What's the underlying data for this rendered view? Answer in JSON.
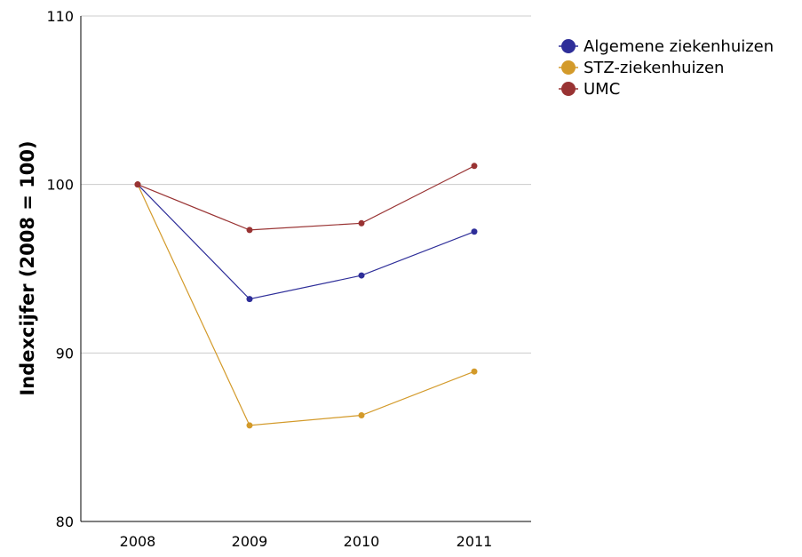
{
  "chart_data": {
    "type": "line",
    "title": "",
    "xlabel": "",
    "ylabel": "Indexcijfer (2008 = 100)",
    "categories": [
      "2008",
      "2009",
      "2010",
      "2011"
    ],
    "ylim": [
      80,
      110
    ],
    "yticks": [
      "80",
      "90",
      "100",
      "110"
    ],
    "grid": "horizontal",
    "legend_position": "top-right",
    "series": [
      {
        "name": "Algemene ziekenhuizen",
        "color": "#2e2e99",
        "values": [
          100,
          93.2,
          94.6,
          97.2
        ]
      },
      {
        "name": "STZ-ziekenhuizen",
        "color": "#d39a2a",
        "values": [
          100,
          85.7,
          86.3,
          88.9
        ]
      },
      {
        "name": "UMC",
        "color": "#993333",
        "values": [
          100,
          97.3,
          97.7,
          101.1
        ]
      }
    ]
  }
}
